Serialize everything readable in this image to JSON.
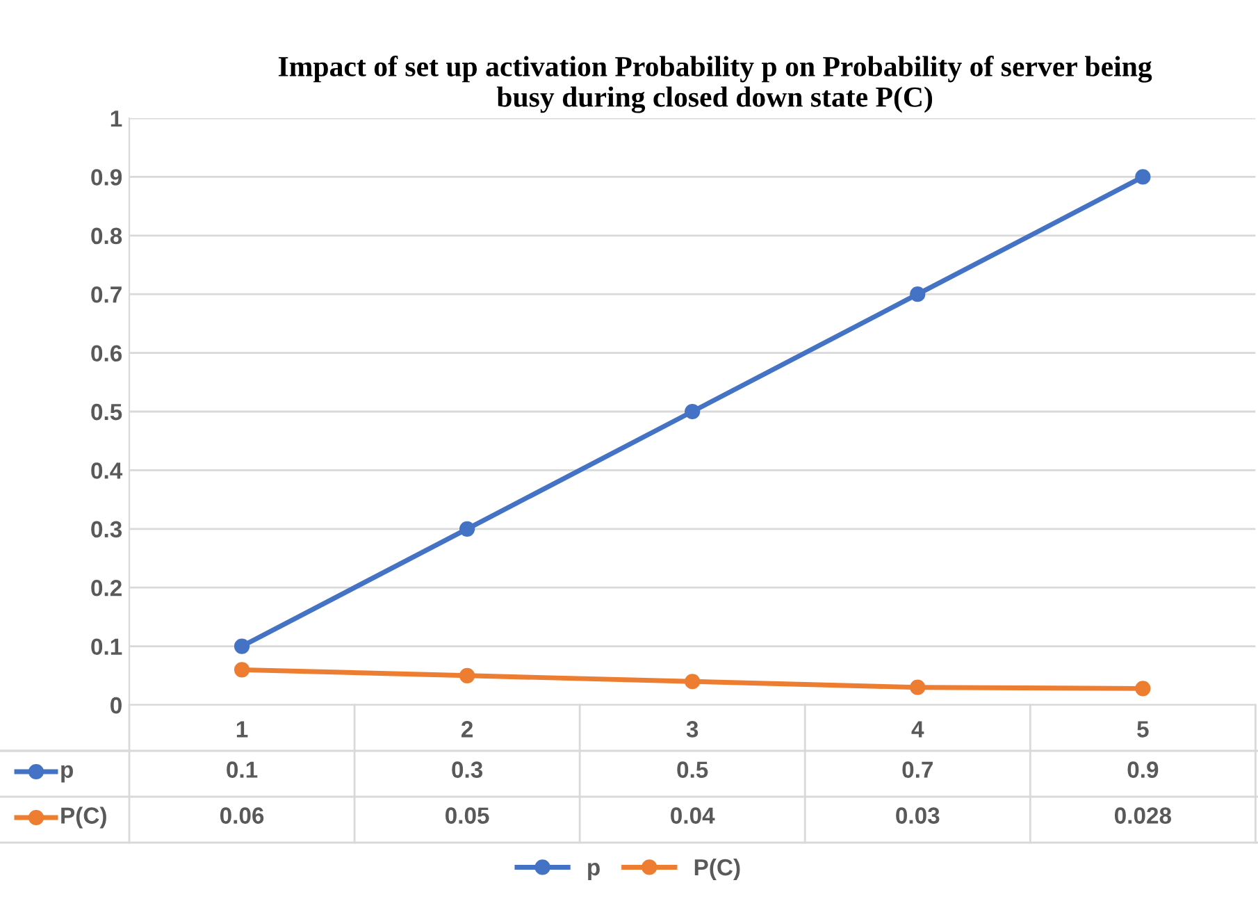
{
  "chart_data": {
    "type": "line",
    "title": "Impact of set up activation Probability p on Probability of server being\nbusy during closed down state P(C)",
    "categories": [
      "1",
      "2",
      "3",
      "4",
      "5"
    ],
    "series": [
      {
        "name": "p",
        "color": "#4472c4",
        "values": [
          0.1,
          0.3,
          0.5,
          0.7,
          0.9
        ]
      },
      {
        "name": "P(C)",
        "color": "#ed7d31",
        "values": [
          0.06,
          0.05,
          0.04,
          0.03,
          0.028
        ]
      }
    ],
    "ylim": [
      0,
      1
    ],
    "yticks": [
      0,
      0.1,
      0.2,
      0.3,
      0.4,
      0.5,
      0.6,
      0.7,
      0.8,
      0.9,
      1
    ],
    "grid": "y",
    "legend": "bottom",
    "marker": "circle",
    "line_style": "solid",
    "data_labels": true
  }
}
